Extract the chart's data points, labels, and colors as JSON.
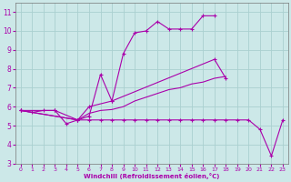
{
  "xlabel": "Windchill (Refroidissement éolien,°C)",
  "bg_color": "#cce8e8",
  "grid_color": "#aad0d0",
  "line_color": "#aa00aa",
  "s1_x": [
    0,
    1,
    2,
    3,
    4,
    5,
    6,
    7,
    8,
    9,
    10,
    11,
    12,
    13,
    14,
    15,
    16,
    17
  ],
  "s1_y": [
    5.8,
    5.7,
    5.8,
    5.8,
    5.1,
    5.3,
    5.5,
    7.7,
    6.3,
    8.8,
    9.9,
    10.0,
    10.5,
    10.1,
    10.1,
    10.1,
    10.8,
    10.8
  ],
  "s2_x": [
    0,
    3,
    5,
    6,
    8,
    17,
    18
  ],
  "s2_y": [
    5.8,
    5.8,
    5.3,
    6.0,
    6.3,
    8.5,
    7.5
  ],
  "s3_x": [
    0,
    5,
    6,
    7,
    8,
    9,
    10,
    11,
    12,
    13,
    14,
    15,
    16,
    17,
    18
  ],
  "s3_y": [
    5.8,
    5.3,
    5.65,
    5.8,
    5.85,
    6.0,
    6.3,
    6.5,
    6.7,
    6.9,
    7.0,
    7.2,
    7.3,
    7.5,
    7.6
  ],
  "s4_x": [
    0,
    5,
    6,
    7,
    8,
    9,
    10,
    11,
    12,
    13,
    14,
    15,
    16,
    17,
    18,
    19,
    20,
    21,
    22,
    23
  ],
  "s4_y": [
    5.8,
    5.3,
    5.3,
    5.3,
    5.3,
    5.3,
    5.3,
    5.3,
    5.3,
    5.3,
    5.3,
    5.3,
    5.3,
    5.3,
    5.3,
    5.3,
    5.3,
    4.8,
    3.4,
    5.3
  ],
  "ylim": [
    3,
    11.5
  ],
  "xlim": [
    -0.5,
    23.5
  ],
  "yticks": [
    3,
    4,
    5,
    6,
    7,
    8,
    9,
    10,
    11
  ],
  "xticks": [
    0,
    1,
    2,
    3,
    4,
    5,
    6,
    7,
    8,
    9,
    10,
    11,
    12,
    13,
    14,
    15,
    16,
    17,
    18,
    19,
    20,
    21,
    22,
    23
  ]
}
